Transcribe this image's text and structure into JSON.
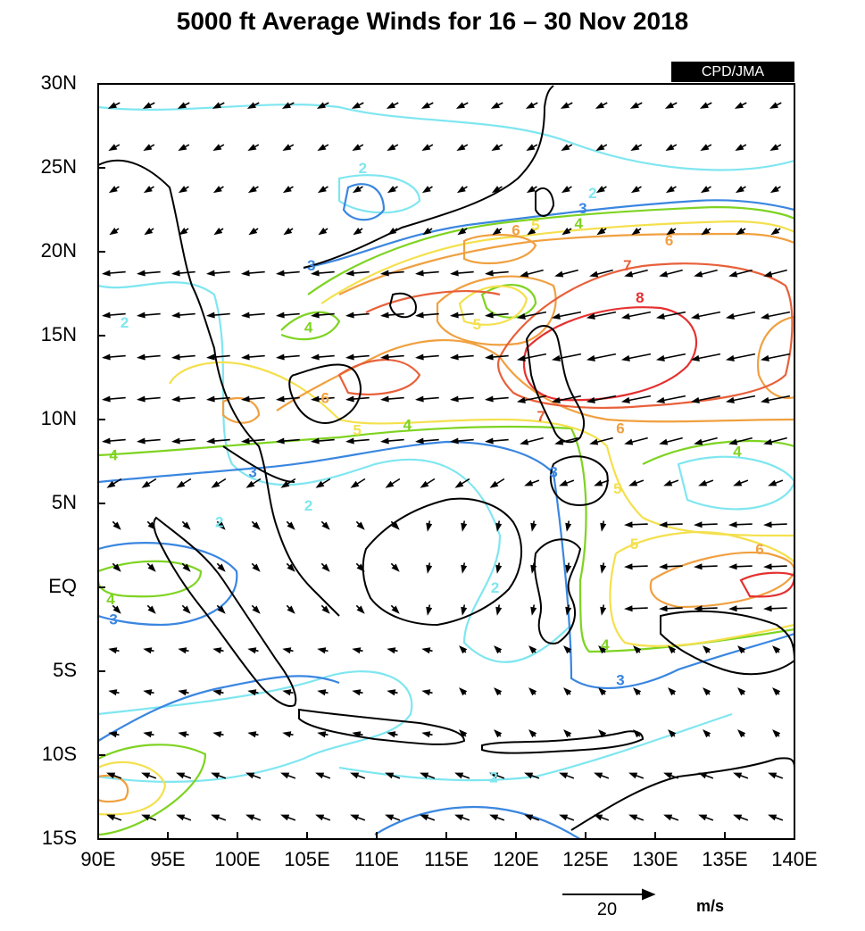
{
  "title": "5000 ft Average Winds for 16 – 30 Nov 2018",
  "credit": "CPD/JMA",
  "latitudes": [
    "30N",
    "25N",
    "20N",
    "15N",
    "10N",
    "5N",
    "EQ",
    "5S",
    "10S",
    "15S"
  ],
  "longitudes": [
    "90E",
    "95E",
    "100E",
    "105E",
    "110E",
    "115E",
    "120E",
    "125E",
    "130E",
    "135E",
    "140E"
  ],
  "reference_vector": {
    "value": "20",
    "unit": "m/s"
  },
  "contour_labels": [
    {
      "text": "2",
      "lon": 109.0,
      "lat": 25.0,
      "color": "#7fe6f0"
    },
    {
      "text": "2",
      "lon": 125.5,
      "lat": 23.5,
      "color": "#7fe6f0"
    },
    {
      "text": "3",
      "lon": 124.8,
      "lat": 22.6,
      "color": "#3a86e0"
    },
    {
      "text": "4",
      "lon": 124.5,
      "lat": 21.7,
      "color": "#7ed321"
    },
    {
      "text": "5",
      "lon": 121.4,
      "lat": 21.6,
      "color": "#f4e04d"
    },
    {
      "text": "6",
      "lon": 120.0,
      "lat": 21.3,
      "color": "#f0a040"
    },
    {
      "text": "6",
      "lon": 131.0,
      "lat": 20.7,
      "color": "#f0a040"
    },
    {
      "text": "7",
      "lon": 128.0,
      "lat": 19.2,
      "color": "#e8603a"
    },
    {
      "text": "8",
      "lon": 128.9,
      "lat": 17.3,
      "color": "#e53030"
    },
    {
      "text": "3",
      "lon": 105.3,
      "lat": 19.2,
      "color": "#3a86e0"
    },
    {
      "text": "2",
      "lon": 91.9,
      "lat": 15.8,
      "color": "#7fe6f0"
    },
    {
      "text": "4",
      "lon": 105.1,
      "lat": 15.5,
      "color": "#7ed321"
    },
    {
      "text": "5",
      "lon": 117.2,
      "lat": 15.7,
      "color": "#f4e04d"
    },
    {
      "text": "6",
      "lon": 106.3,
      "lat": 11.3,
      "color": "#f0a040"
    },
    {
      "text": "7",
      "lon": 121.8,
      "lat": 10.2,
      "color": "#e8603a"
    },
    {
      "text": "6",
      "lon": 127.5,
      "lat": 9.5,
      "color": "#f0a040"
    },
    {
      "text": "5",
      "lon": 108.6,
      "lat": 9.4,
      "color": "#f4e04d"
    },
    {
      "text": "4",
      "lon": 112.2,
      "lat": 9.7,
      "color": "#7ed321"
    },
    {
      "text": "4",
      "lon": 91.1,
      "lat": 7.9,
      "color": "#7ed321"
    },
    {
      "text": "4",
      "lon": 135.9,
      "lat": 8.1,
      "color": "#7ed321"
    },
    {
      "text": "3",
      "lon": 101.1,
      "lat": 6.9,
      "color": "#3a86e0"
    },
    {
      "text": "3",
      "lon": 122.7,
      "lat": 6.9,
      "color": "#3a86e0"
    },
    {
      "text": "5",
      "lon": 127.3,
      "lat": 5.9,
      "color": "#f4e04d"
    },
    {
      "text": "2",
      "lon": 105.1,
      "lat": 4.9,
      "color": "#7fe6f0"
    },
    {
      "text": "2",
      "lon": 98.7,
      "lat": 3.9,
      "color": "#7fe6f0"
    },
    {
      "text": "5",
      "lon": 128.5,
      "lat": 2.6,
      "color": "#f4e04d"
    },
    {
      "text": "6",
      "lon": 137.5,
      "lat": 2.3,
      "color": "#f0a040"
    },
    {
      "text": "2",
      "lon": 118.5,
      "lat": 0.0,
      "color": "#7fe6f0"
    },
    {
      "text": "4",
      "lon": 90.9,
      "lat": -0.7,
      "color": "#7ed321"
    },
    {
      "text": "3",
      "lon": 91.1,
      "lat": -1.9,
      "color": "#3a86e0"
    },
    {
      "text": "4",
      "lon": 126.4,
      "lat": -3.4,
      "color": "#7ed321"
    },
    {
      "text": "3",
      "lon": 127.5,
      "lat": -5.5,
      "color": "#3a86e0"
    },
    {
      "text": "2",
      "lon": 118.4,
      "lat": -11.3,
      "color": "#7fe6f0"
    }
  ],
  "colors": {
    "speed_2": "#7fe6f0",
    "speed_3": "#3a86e0",
    "speed_4": "#7ed321",
    "speed_5": "#f4e04d",
    "speed_6": "#f0a040",
    "speed_7": "#e8603a",
    "speed_8": "#e53030",
    "arrows": "#000000",
    "coast": "#000000"
  }
}
